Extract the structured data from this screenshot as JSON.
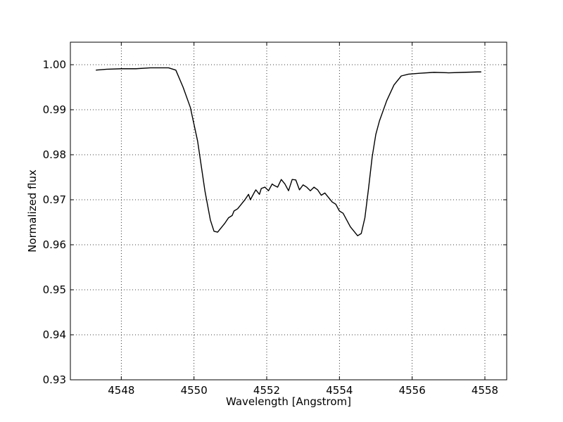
{
  "chart_data": {
    "type": "line",
    "title": "",
    "xlabel": "Wavelength [Angstrom]",
    "ylabel": "Normalized flux",
    "xlim": [
      4546.6,
      4558.6
    ],
    "ylim": [
      0.93,
      1.005
    ],
    "xticks": [
      4548,
      4550,
      4552,
      4554,
      4556,
      4558
    ],
    "yticks": [
      0.93,
      0.94,
      0.95,
      0.96,
      0.97,
      0.98,
      0.99,
      1.0
    ],
    "xtick_labels": [
      "4548",
      "4550",
      "4552",
      "4554",
      "4556",
      "4558"
    ],
    "ytick_labels": [
      "0.93",
      "0.94",
      "0.95",
      "0.96",
      "0.97",
      "0.98",
      "0.99",
      "1.00"
    ],
    "grid": true,
    "line_color": "#000000",
    "series": [
      {
        "x": [
          4547.3,
          4547.6,
          4548.0,
          4548.4,
          4548.8,
          4549.0,
          4549.3,
          4549.5,
          4549.7,
          4549.9,
          4550.1,
          4550.3,
          4550.45,
          4550.55,
          4550.65,
          4550.75,
          4550.85,
          4550.95,
          4551.05,
          4551.1,
          4551.2,
          4551.3,
          4551.4,
          4551.5,
          4551.55,
          4551.65,
          4551.7,
          4551.8,
          4551.85,
          4551.95,
          4552.05,
          4552.15,
          4552.2,
          4552.3,
          4552.4,
          4552.5,
          4552.6,
          4552.7,
          4552.8,
          4552.9,
          4553.0,
          4553.1,
          4553.2,
          4553.3,
          4553.4,
          4553.5,
          4553.6,
          4553.7,
          4553.8,
          4553.9,
          4554.0,
          4554.1,
          4554.2,
          4554.3,
          4554.4,
          4554.5,
          4554.6,
          4554.7,
          4554.8,
          4554.9,
          4555.0,
          4555.1,
          4555.3,
          4555.5,
          4555.7,
          4555.9,
          4556.2,
          4556.6,
          4557.0,
          4557.4,
          4557.8,
          4557.9
        ],
        "y": [
          0.9988,
          0.999,
          0.9991,
          0.9991,
          0.9993,
          0.9993,
          0.9993,
          0.9988,
          0.995,
          0.9905,
          0.983,
          0.972,
          0.9655,
          0.963,
          0.9628,
          0.9638,
          0.9648,
          0.966,
          0.9665,
          0.9675,
          0.968,
          0.969,
          0.97,
          0.9712,
          0.97,
          0.9715,
          0.9722,
          0.9712,
          0.9725,
          0.9728,
          0.972,
          0.9735,
          0.9732,
          0.9728,
          0.9745,
          0.9735,
          0.972,
          0.9745,
          0.9744,
          0.9722,
          0.9733,
          0.9728,
          0.972,
          0.9728,
          0.9722,
          0.971,
          0.9715,
          0.9705,
          0.9695,
          0.969,
          0.9675,
          0.967,
          0.9655,
          0.964,
          0.963,
          0.962,
          0.9625,
          0.966,
          0.9725,
          0.9795,
          0.9845,
          0.9875,
          0.992,
          0.9955,
          0.9975,
          0.9979,
          0.9981,
          0.9983,
          0.9982,
          0.9983,
          0.9984,
          0.9984
        ]
      }
    ]
  }
}
